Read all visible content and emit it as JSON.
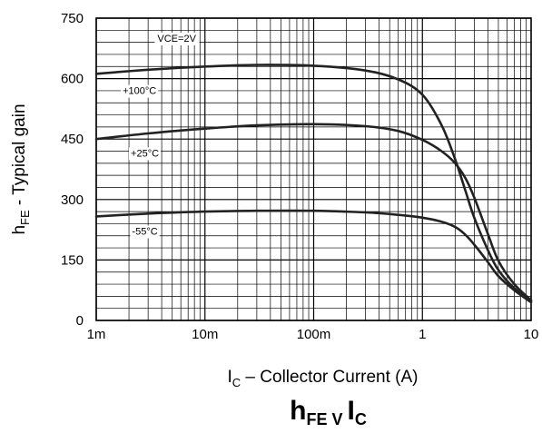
{
  "chart_data": {
    "type": "line",
    "title": {
      "main": "h",
      "sub1": "FE",
      "sep": " V ",
      "main2": "I",
      "sub2": "C"
    },
    "xlabel": {
      "main": "I",
      "sub": "C",
      "rest": " – Collector Current (A)"
    },
    "ylabel": {
      "main": "h",
      "sub": "FE",
      "rest": " - Typical gain"
    },
    "xscale": "log",
    "xlim": [
      0.001,
      10
    ],
    "ylim": [
      0,
      750
    ],
    "xticks": [
      0.001,
      0.01,
      0.1,
      1,
      10
    ],
    "xtick_labels": [
      "1m",
      "10m",
      "100m",
      "1",
      "10"
    ],
    "yticks": [
      0,
      150,
      300,
      450,
      600,
      750
    ],
    "ytick_labels": [
      "0",
      "150",
      "300",
      "450",
      "600",
      "750"
    ],
    "grid": true,
    "annotation": "VCE=2V",
    "series": [
      {
        "name": "+100°C",
        "x": [
          0.001,
          0.003,
          0.01,
          0.03,
          0.1,
          0.3,
          0.6,
          1.0,
          1.5,
          2.0,
          2.5,
          3.0,
          4.0,
          5.0,
          7.0,
          10.0
        ],
        "y": [
          612,
          622,
          630,
          634,
          632,
          620,
          598,
          560,
          485,
          400,
          320,
          255,
          175,
          125,
          80,
          48
        ]
      },
      {
        "name": "+25°C",
        "x": [
          0.001,
          0.003,
          0.01,
          0.03,
          0.1,
          0.3,
          0.6,
          1.0,
          1.5,
          2.0,
          2.5,
          3.0,
          4.0,
          5.0,
          7.0,
          10.0
        ],
        "y": [
          450,
          464,
          476,
          484,
          487,
          482,
          470,
          448,
          420,
          390,
          352,
          305,
          215,
          148,
          90,
          50
        ]
      },
      {
        "name": "-55°C",
        "x": [
          0.001,
          0.003,
          0.01,
          0.03,
          0.1,
          0.3,
          0.6,
          1.0,
          1.5,
          2.0,
          2.5,
          3.0,
          4.0,
          5.0,
          7.0,
          10.0
        ],
        "y": [
          258,
          265,
          270,
          272,
          272,
          268,
          262,
          255,
          245,
          232,
          212,
          188,
          145,
          110,
          75,
          45
        ]
      }
    ]
  }
}
